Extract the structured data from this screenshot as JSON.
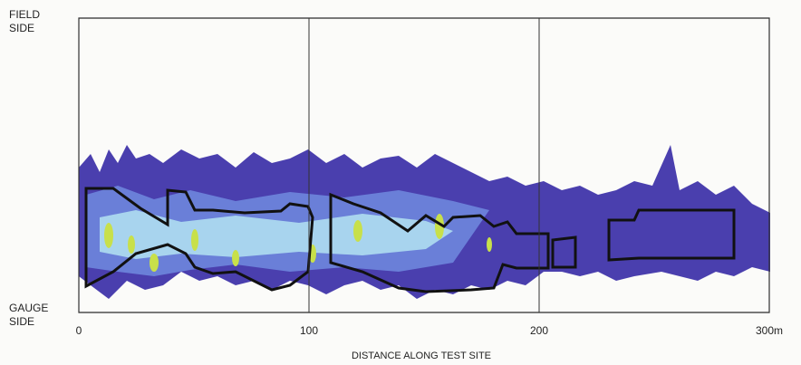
{
  "chart_data": {
    "type": "heatmap",
    "x_label": "DISTANCE ALONG TEST SITE",
    "y_top_label": "FIELD SIDE",
    "y_bottom_label": "GAUGE SIDE",
    "xlim": [
      0,
      300
    ],
    "xticks": [
      0,
      100,
      200,
      {
        "value": 300,
        "label": "300m"
      }
    ],
    "grid": true
  }
}
